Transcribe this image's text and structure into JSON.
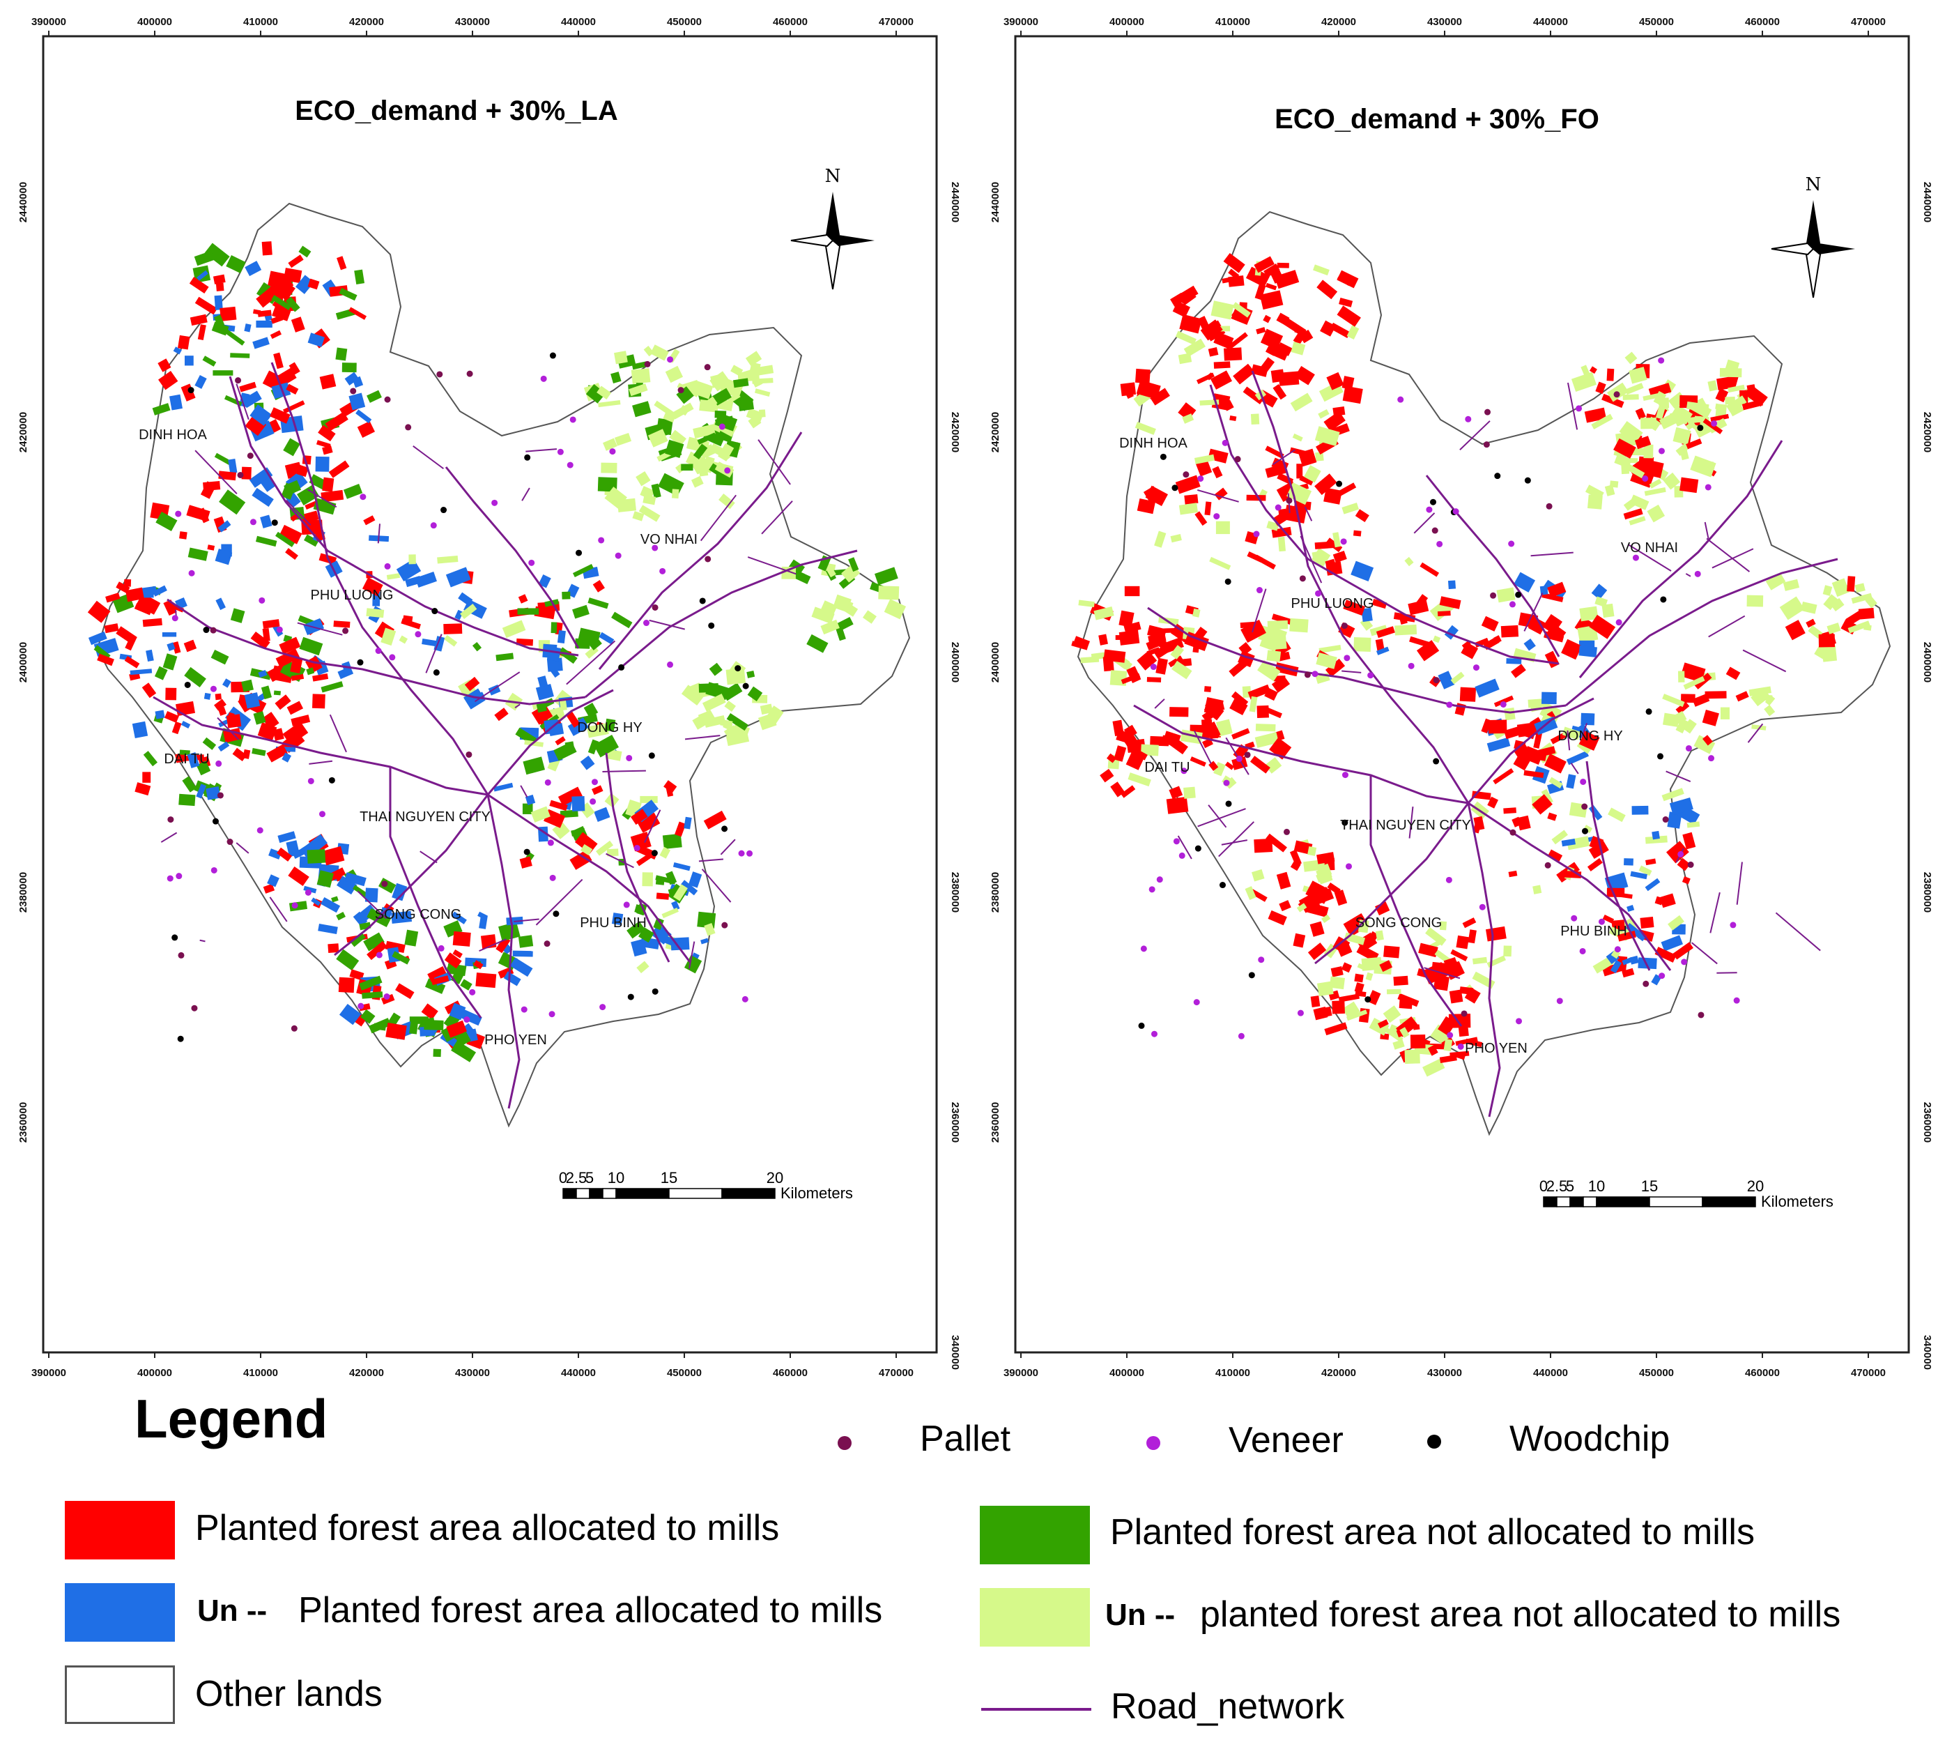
{
  "colors": {
    "allocated": "#ff0000",
    "un_allocated": "#1f6fe6",
    "not_allocated": "#33a300",
    "un_not_allocated": "#d6f98a",
    "other": "#ffffff",
    "road": "#7a1b8c",
    "pallet": "#7a1050",
    "veneer": "#b21fd9",
    "woodchip": "#000000"
  },
  "maps": [
    {
      "title": "ECO_demand + 30%_LA",
      "x_ticks": [
        "390000",
        "400000",
        "410000",
        "420000",
        "430000",
        "440000",
        "450000",
        "460000",
        "470000"
      ],
      "y_ticks": [
        "2440000",
        "2420000",
        "2400000",
        "2380000",
        "2360000"
      ],
      "corner_label": "340000",
      "place_names": [
        "DINH HOA",
        "VO NHAI",
        "PHU LUONG",
        "DAI TU",
        "DONG HY",
        "THAI NGUYEN CITY",
        "SONG CONG",
        "PHU BINH",
        "PHO YEN"
      ],
      "north": "N",
      "scale": {
        "ticks": [
          "0",
          "2.5",
          "5",
          "10",
          "15",
          "20"
        ],
        "unit": "Kilometers"
      }
    },
    {
      "title": "ECO_demand + 30%_FO",
      "x_ticks": [
        "390000",
        "400000",
        "410000",
        "420000",
        "430000",
        "440000",
        "450000",
        "460000",
        "470000"
      ],
      "y_ticks": [
        "2440000",
        "2420000",
        "2400000",
        "2380000",
        "2360000"
      ],
      "corner_label": "340000",
      "place_names": [
        "DINH HOA",
        "VO NHAI",
        "PHU LUONG",
        "DAI TU",
        "DONG HY",
        "THAI NGUYEN CITY",
        "SONG CONG",
        "PHU BINH",
        "PHO YEN"
      ],
      "north": "N",
      "scale": {
        "ticks": [
          "0",
          "2.5",
          "5",
          "10",
          "15",
          "20"
        ],
        "unit": "Kilometers"
      }
    }
  ],
  "legend": {
    "title": "Legend",
    "points": [
      {
        "label": "Pallet",
        "color_key": "pallet"
      },
      {
        "label": "Veneer",
        "color_key": "veneer"
      },
      {
        "label": "Woodchip",
        "color_key": "woodchip"
      }
    ],
    "allocated": "Planted forest area allocated to mills",
    "un_prefix_1": "Un --",
    "un_allocated": "Planted forest area allocated to mills",
    "other": "Other lands",
    "not_allocated": "Planted forest area not allocated to mills",
    "un_prefix_2": "Un --",
    "un_not_allocated": "planted forest area not allocated to mills",
    "road": "Road_network"
  }
}
